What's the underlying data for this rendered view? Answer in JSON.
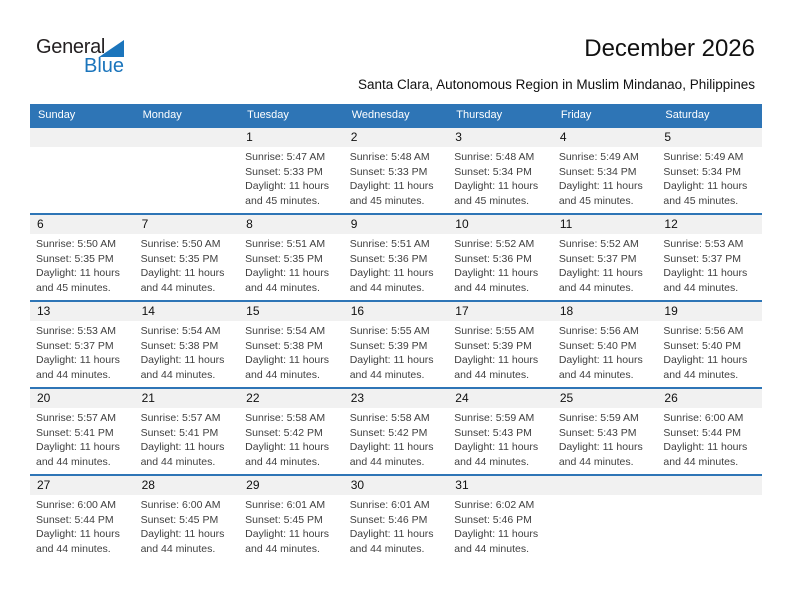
{
  "logo": {
    "name_top": "General",
    "name_bottom": "Blue"
  },
  "header": {
    "title": "December 2026",
    "subtitle": "Santa Clara, Autonomous Region in Muslim Mindanao, Philippines"
  },
  "colors": {
    "header_bar": "#2E75B6",
    "week_border": "#2E75B6",
    "day_band_bg": "#F1F1F1",
    "logo_blue": "#1B75BC",
    "logo_dark": "#231F20",
    "detail_text": "#404040"
  },
  "calendar": {
    "weekdays": [
      "Sunday",
      "Monday",
      "Tuesday",
      "Wednesday",
      "Thursday",
      "Friday",
      "Saturday"
    ],
    "weeks": [
      [
        null,
        null,
        {
          "day": "1",
          "sunrise": "Sunrise: 5:47 AM",
          "sunset": "Sunset: 5:33 PM",
          "daylight": "Daylight: 11 hours and 45 minutes."
        },
        {
          "day": "2",
          "sunrise": "Sunrise: 5:48 AM",
          "sunset": "Sunset: 5:33 PM",
          "daylight": "Daylight: 11 hours and 45 minutes."
        },
        {
          "day": "3",
          "sunrise": "Sunrise: 5:48 AM",
          "sunset": "Sunset: 5:34 PM",
          "daylight": "Daylight: 11 hours and 45 minutes."
        },
        {
          "day": "4",
          "sunrise": "Sunrise: 5:49 AM",
          "sunset": "Sunset: 5:34 PM",
          "daylight": "Daylight: 11 hours and 45 minutes."
        },
        {
          "day": "5",
          "sunrise": "Sunrise: 5:49 AM",
          "sunset": "Sunset: 5:34 PM",
          "daylight": "Daylight: 11 hours and 45 minutes."
        }
      ],
      [
        {
          "day": "6",
          "sunrise": "Sunrise: 5:50 AM",
          "sunset": "Sunset: 5:35 PM",
          "daylight": "Daylight: 11 hours and 45 minutes."
        },
        {
          "day": "7",
          "sunrise": "Sunrise: 5:50 AM",
          "sunset": "Sunset: 5:35 PM",
          "daylight": "Daylight: 11 hours and 44 minutes."
        },
        {
          "day": "8",
          "sunrise": "Sunrise: 5:51 AM",
          "sunset": "Sunset: 5:35 PM",
          "daylight": "Daylight: 11 hours and 44 minutes."
        },
        {
          "day": "9",
          "sunrise": "Sunrise: 5:51 AM",
          "sunset": "Sunset: 5:36 PM",
          "daylight": "Daylight: 11 hours and 44 minutes."
        },
        {
          "day": "10",
          "sunrise": "Sunrise: 5:52 AM",
          "sunset": "Sunset: 5:36 PM",
          "daylight": "Daylight: 11 hours and 44 minutes."
        },
        {
          "day": "11",
          "sunrise": "Sunrise: 5:52 AM",
          "sunset": "Sunset: 5:37 PM",
          "daylight": "Daylight: 11 hours and 44 minutes."
        },
        {
          "day": "12",
          "sunrise": "Sunrise: 5:53 AM",
          "sunset": "Sunset: 5:37 PM",
          "daylight": "Daylight: 11 hours and 44 minutes."
        }
      ],
      [
        {
          "day": "13",
          "sunrise": "Sunrise: 5:53 AM",
          "sunset": "Sunset: 5:37 PM",
          "daylight": "Daylight: 11 hours and 44 minutes."
        },
        {
          "day": "14",
          "sunrise": "Sunrise: 5:54 AM",
          "sunset": "Sunset: 5:38 PM",
          "daylight": "Daylight: 11 hours and 44 minutes."
        },
        {
          "day": "15",
          "sunrise": "Sunrise: 5:54 AM",
          "sunset": "Sunset: 5:38 PM",
          "daylight": "Daylight: 11 hours and 44 minutes."
        },
        {
          "day": "16",
          "sunrise": "Sunrise: 5:55 AM",
          "sunset": "Sunset: 5:39 PM",
          "daylight": "Daylight: 11 hours and 44 minutes."
        },
        {
          "day": "17",
          "sunrise": "Sunrise: 5:55 AM",
          "sunset": "Sunset: 5:39 PM",
          "daylight": "Daylight: 11 hours and 44 minutes."
        },
        {
          "day": "18",
          "sunrise": "Sunrise: 5:56 AM",
          "sunset": "Sunset: 5:40 PM",
          "daylight": "Daylight: 11 hours and 44 minutes."
        },
        {
          "day": "19",
          "sunrise": "Sunrise: 5:56 AM",
          "sunset": "Sunset: 5:40 PM",
          "daylight": "Daylight: 11 hours and 44 minutes."
        }
      ],
      [
        {
          "day": "20",
          "sunrise": "Sunrise: 5:57 AM",
          "sunset": "Sunset: 5:41 PM",
          "daylight": "Daylight: 11 hours and 44 minutes."
        },
        {
          "day": "21",
          "sunrise": "Sunrise: 5:57 AM",
          "sunset": "Sunset: 5:41 PM",
          "daylight": "Daylight: 11 hours and 44 minutes."
        },
        {
          "day": "22",
          "sunrise": "Sunrise: 5:58 AM",
          "sunset": "Sunset: 5:42 PM",
          "daylight": "Daylight: 11 hours and 44 minutes."
        },
        {
          "day": "23",
          "sunrise": "Sunrise: 5:58 AM",
          "sunset": "Sunset: 5:42 PM",
          "daylight": "Daylight: 11 hours and 44 minutes."
        },
        {
          "day": "24",
          "sunrise": "Sunrise: 5:59 AM",
          "sunset": "Sunset: 5:43 PM",
          "daylight": "Daylight: 11 hours and 44 minutes."
        },
        {
          "day": "25",
          "sunrise": "Sunrise: 5:59 AM",
          "sunset": "Sunset: 5:43 PM",
          "daylight": "Daylight: 11 hours and 44 minutes."
        },
        {
          "day": "26",
          "sunrise": "Sunrise: 6:00 AM",
          "sunset": "Sunset: 5:44 PM",
          "daylight": "Daylight: 11 hours and 44 minutes."
        }
      ],
      [
        {
          "day": "27",
          "sunrise": "Sunrise: 6:00 AM",
          "sunset": "Sunset: 5:44 PM",
          "daylight": "Daylight: 11 hours and 44 minutes."
        },
        {
          "day": "28",
          "sunrise": "Sunrise: 6:00 AM",
          "sunset": "Sunset: 5:45 PM",
          "daylight": "Daylight: 11 hours and 44 minutes."
        },
        {
          "day": "29",
          "sunrise": "Sunrise: 6:01 AM",
          "sunset": "Sunset: 5:45 PM",
          "daylight": "Daylight: 11 hours and 44 minutes."
        },
        {
          "day": "30",
          "sunrise": "Sunrise: 6:01 AM",
          "sunset": "Sunset: 5:46 PM",
          "daylight": "Daylight: 11 hours and 44 minutes."
        },
        {
          "day": "31",
          "sunrise": "Sunrise: 6:02 AM",
          "sunset": "Sunset: 5:46 PM",
          "daylight": "Daylight: 11 hours and 44 minutes."
        },
        null,
        null
      ]
    ]
  }
}
